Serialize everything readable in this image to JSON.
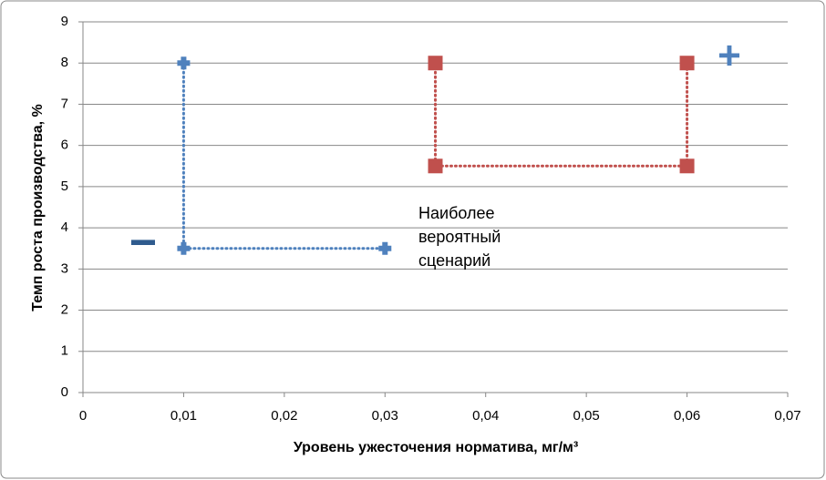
{
  "chart_data": {
    "type": "scatter-line",
    "x_label": "Уровень ужесточения норматива, мг/м³",
    "y_label": "Темп роста производства, %",
    "xlim": [
      0,
      0.07
    ],
    "xticks": [
      0,
      {
        "value": 0.01,
        "label": "0,01"
      },
      {
        "value": 0.02,
        "label": "0,02"
      },
      {
        "value": 0.03,
        "label": "0,03"
      },
      {
        "value": 0.04,
        "label": "0,04"
      },
      {
        "value": 0.05,
        "label": "0,05"
      },
      {
        "value": 0.06,
        "label": "0,06"
      },
      {
        "value": 0.07,
        "label": "0,07"
      }
    ],
    "ylim": [
      0,
      9
    ],
    "yticks": [
      0,
      1,
      2,
      3,
      4,
      5,
      6,
      7,
      8,
      9
    ],
    "grid": true,
    "series": [
      {
        "color": "#4f81bd",
        "marker": "cross",
        "x": [
          0.01,
          0.01,
          0.03
        ],
        "values": [
          8,
          3.5,
          3.5
        ]
      },
      {
        "color": "#c0504d",
        "marker": "square",
        "x": [
          0.035,
          0.035,
          0.06,
          0.06
        ],
        "values": [
          8,
          5.5,
          5.5,
          8
        ]
      }
    ],
    "note_lines": [
      "Наиболее",
      "вероятный",
      "сценарий"
    ],
    "minus_sign": "−",
    "plus_sign": "+"
  }
}
